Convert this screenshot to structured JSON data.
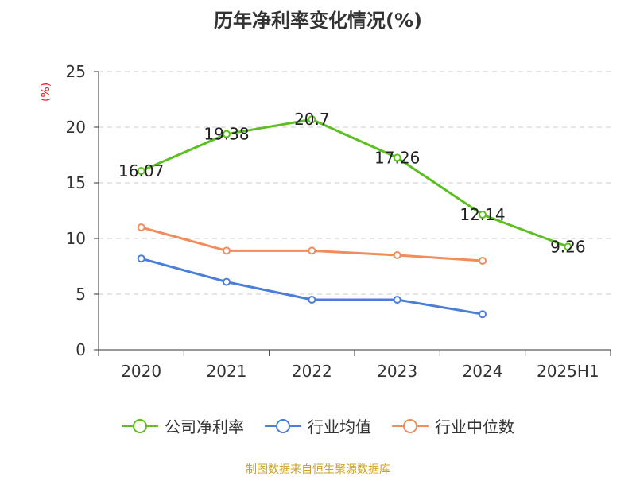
{
  "chart_data": {
    "type": "line",
    "title": "历年净利率变化情况(%)",
    "ylabel": "(%)",
    "categories": [
      "2020",
      "2021",
      "2022",
      "2023",
      "2024",
      "2025H1"
    ],
    "ylim": [
      0,
      25
    ],
    "yticks": [
      0,
      5,
      10,
      15,
      20,
      25
    ],
    "grid": true,
    "legend_position": "bottom",
    "series": [
      {
        "name": "公司净利率",
        "color": "#5cbf22",
        "values": [
          16.07,
          19.38,
          20.7,
          17.26,
          12.14,
          9.26
        ],
        "labels": [
          "16.07",
          "19.38",
          "20.7",
          "17.26",
          "12.14",
          "9.26"
        ]
      },
      {
        "name": "行业均值",
        "color": "#4a7fd8",
        "values": [
          8.2,
          6.1,
          4.5,
          4.5,
          3.2,
          null
        ]
      },
      {
        "name": "行业中位数",
        "color": "#f28c5a",
        "values": [
          11.0,
          8.9,
          8.9,
          8.5,
          8.0,
          null
        ]
      }
    ]
  },
  "source": "制图数据来自恒生聚源数据库"
}
